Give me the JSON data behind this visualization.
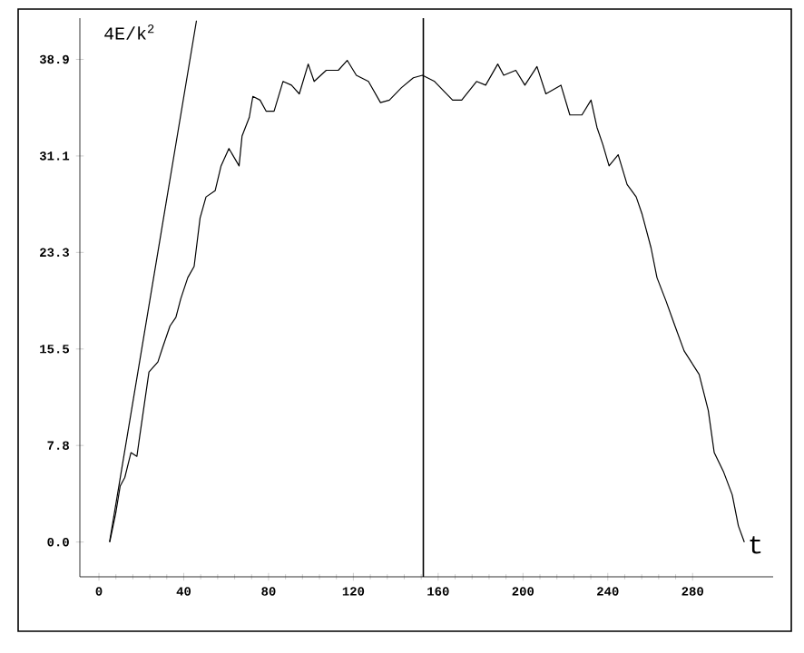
{
  "chart_data": {
    "type": "line",
    "xlabel": "t",
    "ylabel": "4E/k$^{2}$",
    "xlim": [
      -9,
      318
    ],
    "ylim": [
      -2.8,
      42.2
    ],
    "xticks": [
      0,
      40,
      80,
      120,
      160,
      200,
      240,
      280
    ],
    "yticks": [
      {
        "value": 0,
        "label": "0.0"
      },
      {
        "value": 7.78,
        "label": "7.8"
      },
      {
        "value": 15.55,
        "label": "15.5"
      },
      {
        "value": 23.33,
        "label": "23.3"
      },
      {
        "value": 31.1,
        "label": "31.1"
      },
      {
        "value": 38.88,
        "label": "38.9"
      }
    ],
    "grid": false,
    "marker": "none",
    "line_style": "solid",
    "ref_lines": [
      {
        "axis": "x",
        "value": 153,
        "color": "#000000"
      }
    ],
    "series": [
      {
        "color": "#000000",
        "x": [
          5,
          46
        ],
        "values": [
          0,
          42
        ]
      },
      {
        "color": "#000000",
        "x": [
          5.1,
          7.9,
          10,
          12.2,
          15.1,
          17.9,
          19.3,
          23.6,
          27.8,
          30.1,
          33.5,
          36.3,
          38.6,
          41.9,
          44.9,
          47.7,
          50.5,
          54.8,
          57.6,
          61.3,
          66.1,
          67.5,
          70.9,
          72.6,
          76,
          78.9,
          82.6,
          86.8,
          90.8,
          94.5,
          98.7,
          101.5,
          107.2,
          112.9,
          117.1,
          121.4,
          127.1,
          132.8,
          137,
          142.7,
          148.3,
          152.6,
          158.3,
          166.8,
          171.1,
          178.1,
          182.4,
          188.1,
          190.9,
          196.6,
          200.9,
          206.6,
          210.8,
          217.9,
          222.1,
          227.8,
          232.1,
          234.9,
          237.7,
          240.6,
          244.9,
          249.1,
          253.4,
          256.2,
          260.4,
          263.2,
          267.5,
          271.7,
          276,
          283.1,
          287.4,
          290.2,
          294.5,
          298.7,
          301.6,
          304.4
        ],
        "values": [
          0,
          2.3,
          4.5,
          5.2,
          7.2,
          6.9,
          8.6,
          13.7,
          14.5,
          15.7,
          17.4,
          18.1,
          19.6,
          21.3,
          22.2,
          26.1,
          27.8,
          28.3,
          30.3,
          31.7,
          30.3,
          32.7,
          34.2,
          35.9,
          35.6,
          34.7,
          34.7,
          37.1,
          36.8,
          36.1,
          38.5,
          37.1,
          38.0,
          38.0,
          38.8,
          37.6,
          37.1,
          35.4,
          35.6,
          36.6,
          37.4,
          37.6,
          37.1,
          35.6,
          35.6,
          37.1,
          36.8,
          38.5,
          37.6,
          38.0,
          36.8,
          38.3,
          36.1,
          36.8,
          34.4,
          34.4,
          35.6,
          33.4,
          32.0,
          30.3,
          31.2,
          28.8,
          27.8,
          26.4,
          23.7,
          21.3,
          19.4,
          17.4,
          15.4,
          13.5,
          10.6,
          7.2,
          5.7,
          3.8,
          1.3,
          0
        ]
      }
    ]
  }
}
